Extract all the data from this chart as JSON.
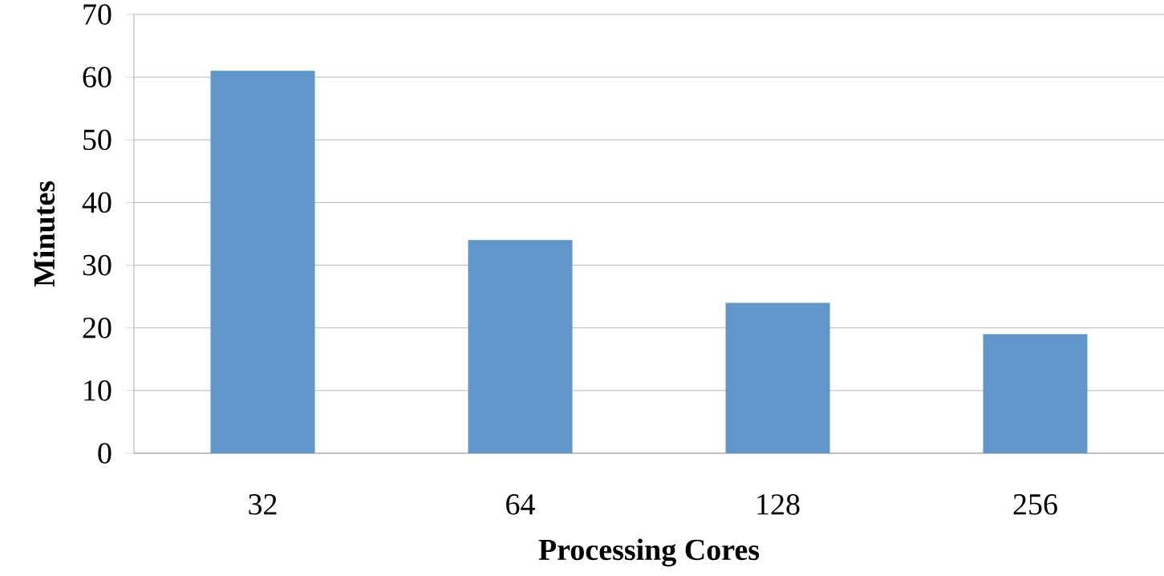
{
  "chart_data": {
    "type": "bar",
    "xlabel": "Processing Cores",
    "ylabel": "Minutes",
    "categories": [
      "32",
      "64",
      "128",
      "256"
    ],
    "values": [
      61,
      34,
      24,
      19
    ],
    "color": "#6096c9",
    "ylim": [
      0,
      70
    ],
    "yticks": [
      0,
      10,
      20,
      30,
      40,
      50,
      60,
      70
    ],
    "grid": "y"
  }
}
